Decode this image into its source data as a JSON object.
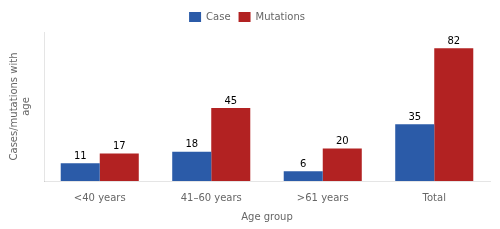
{
  "chart_data": {
    "type": "bar",
    "categories": [
      "<40 years",
      "41–60 years",
      ">61 years",
      "Total"
    ],
    "series": [
      {
        "name": "Case",
        "color": "#2B5BA8",
        "values": [
          11,
          18,
          6,
          35
        ]
      },
      {
        "name": "Mutations",
        "color": "#B22222",
        "values": [
          17,
          45,
          20,
          82
        ]
      }
    ],
    "xlabel": "Age group",
    "ylabel": "Cases/mutations with\nage",
    "ylim": [
      0,
      92
    ],
    "tick_labels": "x",
    "grid": false,
    "legend": "top",
    "data_labels": true
  }
}
